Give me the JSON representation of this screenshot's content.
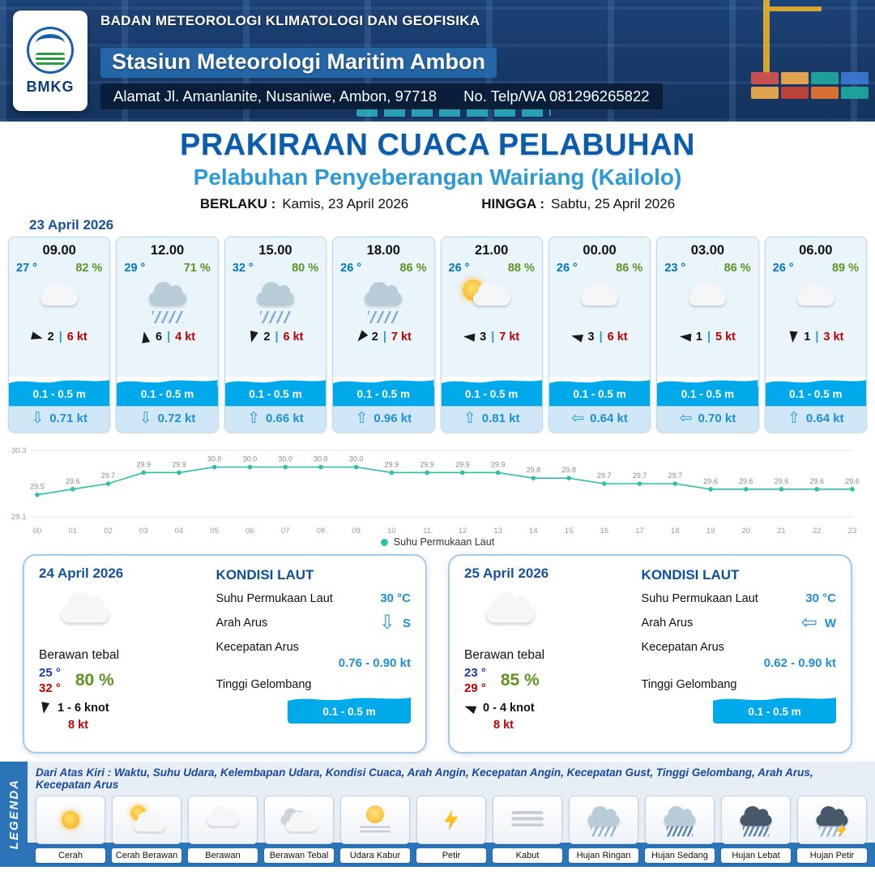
{
  "header": {
    "agency": "BADAN METEOROLOGI KLIMATOLOGI DAN GEOFISIKA",
    "station": "Stasiun Meteorologi Maritim Ambon",
    "address": "Alamat Jl. Amanlanite, Nusaniwe, Ambon, 97718",
    "contact": "No. Telp/WA  081296265822",
    "logo_text": "BMKG"
  },
  "title": {
    "main": "PRAKIRAAN CUACA PELABUHAN",
    "subtitle": "Pelabuhan Penyeberangan Wairiang (Kailolo)",
    "valid_label": "BERLAKU :",
    "valid_value": "Kamis, 23 April 2026",
    "until_label": "HINGGA :",
    "until_value": "Sabtu, 25 April 2026"
  },
  "forecast_date": "23 April 2026",
  "misc": {
    "pipe": "|"
  },
  "hourly": [
    {
      "time": "09.00",
      "temp": "27 °",
      "humidity": "82 %",
      "icon": "berawan",
      "wind_dir_deg": 15,
      "wind": "2",
      "gust": "6 kt",
      "wave": "0.1 - 0.5 m",
      "current_dir": "down",
      "current_glyph": "⇩",
      "current": "0.71 kt"
    },
    {
      "time": "12.00",
      "temp": "29 °",
      "humidity": "71 %",
      "icon": "hujan-sedang",
      "wind_dir_deg": -100,
      "wind": "6",
      "gust": "4 kt",
      "wave": "0.1 - 0.5 m",
      "current_dir": "down",
      "current_glyph": "⇩",
      "current": "0.72 kt"
    },
    {
      "time": "15.00",
      "temp": "32 °",
      "humidity": "80 %",
      "icon": "hujan-sedang",
      "wind_dir_deg": 105,
      "wind": "2",
      "gust": "6 kt",
      "wave": "0.1 - 0.5 m",
      "current_dir": "up",
      "current_glyph": "⇧",
      "current": "0.66 kt"
    },
    {
      "time": "18.00",
      "temp": "26 °",
      "humidity": "86 %",
      "icon": "hujan-sedang",
      "wind_dir_deg": 130,
      "wind": "2",
      "gust": "7 kt",
      "wave": "0.1 - 0.5 m",
      "current_dir": "up",
      "current_glyph": "⇧",
      "current": "0.96 kt"
    },
    {
      "time": "21.00",
      "temp": "26 °",
      "humidity": "88 %",
      "icon": "cerah-berawan",
      "wind_dir_deg": 185,
      "wind": "3",
      "gust": "7 kt",
      "wave": "0.1 - 0.5 m",
      "current_dir": "up",
      "current_glyph": "⇧",
      "current": "0.81 kt"
    },
    {
      "time": "00.00",
      "temp": "26 °",
      "humidity": "86 %",
      "icon": "berawan",
      "wind_dir_deg": 195,
      "wind": "3",
      "gust": "6 kt",
      "wave": "0.1 - 0.5 m",
      "current_dir": "left",
      "current_glyph": "⇦",
      "current": "0.64 kt"
    },
    {
      "time": "03.00",
      "temp": "23 °",
      "humidity": "86 %",
      "icon": "berawan",
      "wind_dir_deg": 185,
      "wind": "1",
      "gust": "5 kt",
      "wave": "0.1 - 0.5 m",
      "current_dir": "left",
      "current_glyph": "⇦",
      "current": "0.70 kt"
    },
    {
      "time": "06.00",
      "temp": "26 °",
      "humidity": "89 %",
      "icon": "berawan",
      "wind_dir_deg": 95,
      "wind": "1",
      "gust": "3 kt",
      "wave": "0.1 - 0.5 m",
      "current_dir": "up",
      "current_glyph": "⇧",
      "current": "0.64 kt"
    }
  ],
  "chart_data": {
    "type": "line",
    "series_name": "Suhu Permukaan Laut",
    "x": [
      "00",
      "01",
      "02",
      "03",
      "04",
      "05",
      "06",
      "07",
      "08",
      "09",
      "10",
      "11",
      "12",
      "13",
      "14",
      "15",
      "16",
      "17",
      "18",
      "19",
      "20",
      "21",
      "22",
      "23"
    ],
    "values": [
      29.5,
      29.6,
      29.7,
      29.9,
      29.9,
      30.0,
      30.0,
      30.0,
      30.0,
      30.0,
      29.9,
      29.9,
      29.9,
      29.9,
      29.8,
      29.8,
      29.7,
      29.7,
      29.7,
      29.6,
      29.6,
      29.6,
      29.6,
      29.6
    ],
    "ylim": [
      29.1,
      30.3
    ],
    "line_color": "#2dbfa8",
    "grid": "top-bottom-only",
    "legend_position": "bottom"
  },
  "days": [
    {
      "date": "24 April 2026",
      "icon": "berawan-tebal",
      "condition": "Berawan tebal",
      "temp_min": "25 °",
      "temp_max": "32 °",
      "humidity": "80 %",
      "wind_dir_deg": 100,
      "wind_range": "1 - 6 knot",
      "gust": "8 kt",
      "sea": {
        "heading": "KONDISI LAUT",
        "sst_label": "Suhu Permukaan Laut",
        "sst_value": "30 °C",
        "dir_label": "Arah Arus",
        "dir_glyph": "⇩",
        "dir_value": "S",
        "speed_label": "Kecepatan Arus",
        "speed_value": "0.76 - 0.90 kt",
        "wave_label": "Tinggi Gelombang",
        "wave_value": "0.1 - 0.5 m"
      }
    },
    {
      "date": "25 April 2026",
      "icon": "berawan-tebal",
      "condition": "Berawan tebal",
      "temp_min": "23 °",
      "temp_max": "29 °",
      "humidity": "85 %",
      "wind_dir_deg": 200,
      "wind_range": "0 - 4 knot",
      "gust": "8 kt",
      "sea": {
        "heading": "KONDISI LAUT",
        "sst_label": "Suhu Permukaan Laut",
        "sst_value": "30 °C",
        "dir_label": "Arah Arus",
        "dir_glyph": "⇦",
        "dir_value": "W",
        "speed_label": "Kecepatan Arus",
        "speed_value": "0.62 - 0.90 kt",
        "wave_label": "Tinggi Gelombang",
        "wave_value": "0.1 - 0.5 m"
      }
    }
  ],
  "legend": {
    "band_label": "LEGENDA",
    "description": "Dari Atas Kiri : Waktu, Suhu Udara, Kelembapan Udara, Kondisi Cuaca, Arah Angin, Kecepatan Angin, Kecepatan Gust, Tinggi Gelombang, Arah Arus, Kecepatan Arus",
    "items": [
      {
        "label": "Cerah",
        "icon": "cerah"
      },
      {
        "label": "Cerah Berawan",
        "icon": "cerah-berawan"
      },
      {
        "label": "Berawan",
        "icon": "berawan"
      },
      {
        "label": "Berawan Tebal",
        "icon": "berawan-tebal"
      },
      {
        "label": "Udara Kabur",
        "icon": "udara-kabur"
      },
      {
        "label": "Petir",
        "icon": "petir"
      },
      {
        "label": "Kabut",
        "icon": "kabut"
      },
      {
        "label": "Hujan Ringan",
        "icon": "hujan-ringan"
      },
      {
        "label": "Hujan Sedang",
        "icon": "hujan-sedang"
      },
      {
        "label": "Hujan Lebat",
        "icon": "hujan-lebat"
      },
      {
        "label": "Hujan Petir",
        "icon": "hujan-petir"
      }
    ]
  }
}
